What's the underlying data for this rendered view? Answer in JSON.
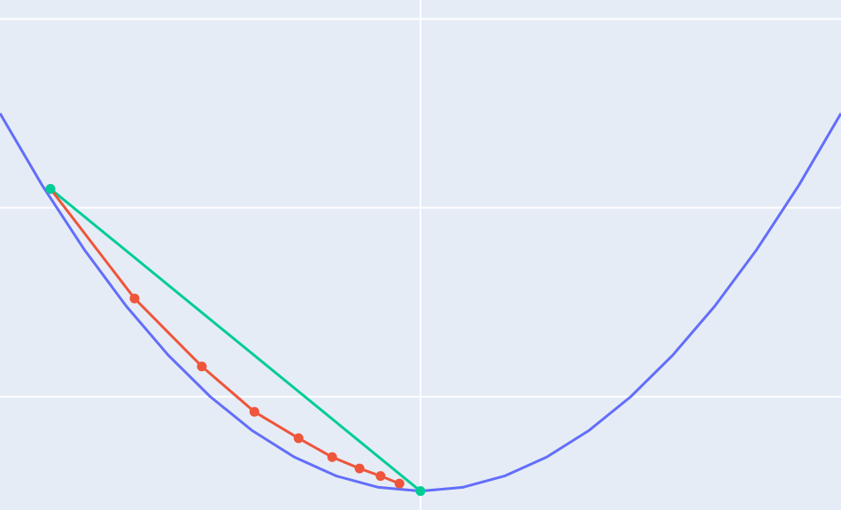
{
  "chart_data": {
    "type": "line",
    "title": "",
    "xlabel": "",
    "ylabel": "",
    "grid": true,
    "xlim": [
      -2.0,
      2.0
    ],
    "ylim": [
      -0.05,
      1.3
    ],
    "xgrid": [
      0
    ],
    "ygrid": [
      0.25,
      0.75,
      1.25
    ],
    "colors": {
      "background": "#E5ECF6",
      "grid": "#FFFFFF",
      "curve": "#636EFA",
      "steps": "#EF553B",
      "direct": "#00CC96"
    },
    "series": [
      {
        "kind": "function",
        "expression": "0.25 * x^2",
        "x": [
          -2.0,
          -1.8,
          -1.6,
          -1.4,
          -1.2,
          -1.0,
          -0.8,
          -0.6,
          -0.4,
          -0.2,
          0.0,
          0.2,
          0.4,
          0.6,
          0.8,
          1.0,
          1.2,
          1.4,
          1.6,
          1.8,
          2.0
        ],
        "y": [
          1.0,
          0.81,
          0.64,
          0.49,
          0.36,
          0.25,
          0.16,
          0.09,
          0.04,
          0.01,
          0.0,
          0.01,
          0.04,
          0.09,
          0.16,
          0.25,
          0.36,
          0.49,
          0.64,
          0.81,
          1.0
        ]
      },
      {
        "kind": "steps",
        "x": [
          -1.76,
          -1.36,
          -1.04,
          -0.79,
          -0.58,
          -0.42,
          -0.29,
          -0.19,
          -0.1
        ],
        "y": [
          0.8,
          0.51,
          0.33,
          0.21,
          0.14,
          0.09,
          0.06,
          0.04,
          0.02
        ]
      },
      {
        "kind": "direct",
        "x": [
          -1.76,
          0.0
        ],
        "y": [
          0.8,
          0.0
        ]
      }
    ]
  }
}
